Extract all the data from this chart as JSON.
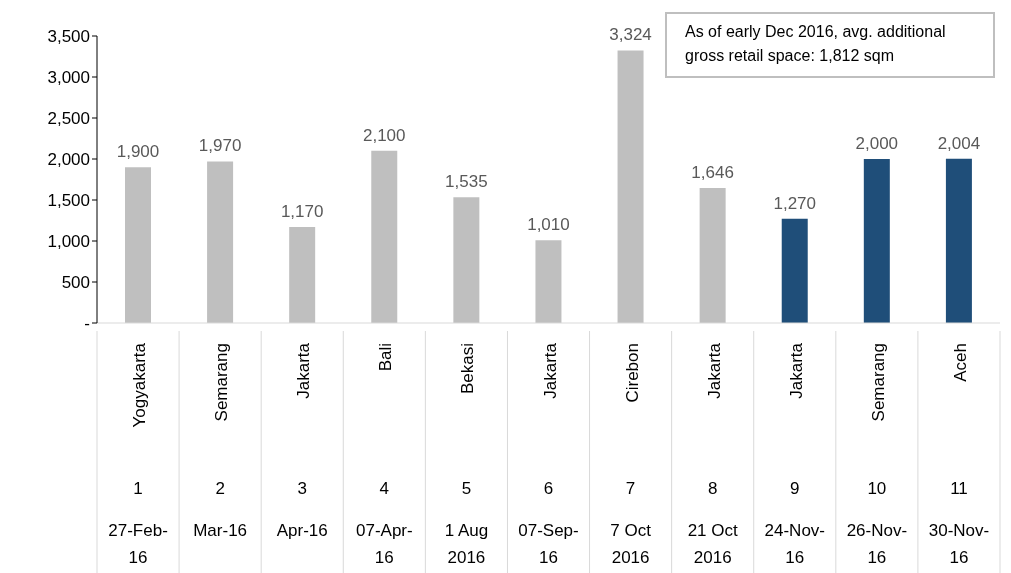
{
  "chart_data": {
    "type": "bar",
    "categories": [
      "Yogyakarta\n1\n27-Feb-16",
      "Semarang\n2\nMar-16",
      "Jakarta\n3\nApr-16",
      "Bali\n4\n07-Apr-16",
      "Bekasi\n5\n1 Aug 2016",
      "Jakarta\n6\n07-Sep-16",
      "Cirebon\n7\n7 Oct 2016",
      "Jakarta\n8\n21 Oct 2016",
      "Jakarta\n9\n24-Nov-16",
      "Semarang\n10\n26-Nov-16",
      "Aceh\n11\n30-Nov-16"
    ],
    "values": [
      1900,
      1970,
      1170,
      2100,
      1535,
      1010,
      3324,
      1646,
      1270,
      2000,
      2004
    ],
    "colors": [
      "#bfbfbf",
      "#bfbfbf",
      "#bfbfbf",
      "#bfbfbf",
      "#bfbfbf",
      "#bfbfbf",
      "#bfbfbf",
      "#bfbfbf",
      "#1f4e79",
      "#1f4e79",
      "#1f4e79"
    ],
    "value_labels": [
      "1,900",
      "1,970",
      "1,170",
      "2,100",
      "1,535",
      "1,010",
      "3,324",
      "1,646",
      "1,270",
      "2,000",
      "2,004"
    ],
    "ylim": [
      0,
      3500
    ],
    "yticks": [
      {
        "value": 0,
        "label": "-"
      },
      {
        "value": 500,
        "label": "500"
      },
      {
        "value": 1000,
        "label": "1,000"
      },
      {
        "value": 1500,
        "label": "1,500"
      },
      {
        "value": 2000,
        "label": "2,000"
      },
      {
        "value": 2500,
        "label": "2,500"
      },
      {
        "value": 3000,
        "label": "3,000"
      },
      {
        "value": 3500,
        "label": "3,500"
      }
    ],
    "grid": false,
    "annotations": [
      "As of early Dec 2016, avg. additional gross retail space: 1,812 sqm"
    ]
  }
}
